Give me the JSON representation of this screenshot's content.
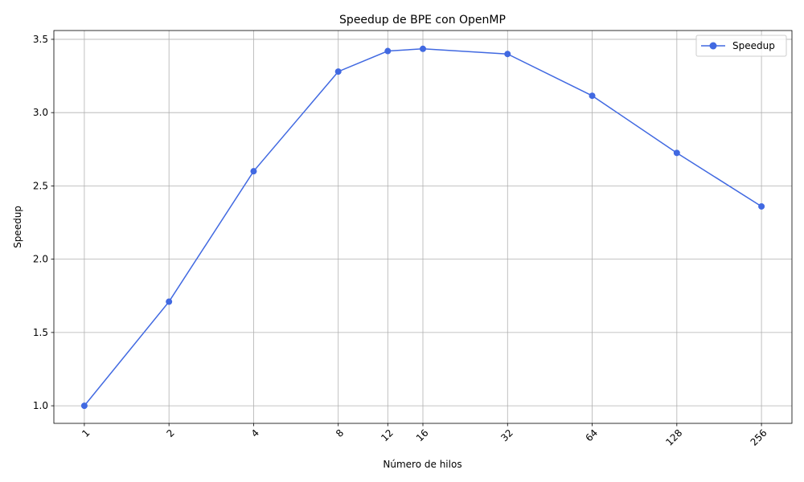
{
  "chart_data": {
    "type": "line",
    "title": "Speedup de BPE con OpenMP",
    "xlabel": "Número de hilos",
    "ylabel": "Speedup",
    "x_scale": "log2",
    "x": [
      1,
      2,
      4,
      8,
      12,
      16,
      32,
      64,
      128,
      256
    ],
    "x_tick_labels": [
      "1",
      "2",
      "4",
      "8",
      "12",
      "16",
      "32",
      "64",
      "128",
      "256"
    ],
    "x_tick_rotation_deg": 45,
    "y_ticks": [
      1.0,
      1.5,
      2.0,
      2.5,
      3.0,
      3.5
    ],
    "y_tick_labels": [
      "1.0",
      "1.5",
      "2.0",
      "2.5",
      "3.0",
      "3.5"
    ],
    "ylim": [
      0.88,
      3.56
    ],
    "grid": true,
    "legend_position": "top-right",
    "series": [
      {
        "name": "Speedup",
        "color": "#4169e1",
        "marker": "circle",
        "values": [
          1.0,
          1.71,
          2.6,
          3.28,
          3.42,
          3.435,
          3.4,
          3.115,
          2.725,
          2.36
        ]
      }
    ]
  }
}
